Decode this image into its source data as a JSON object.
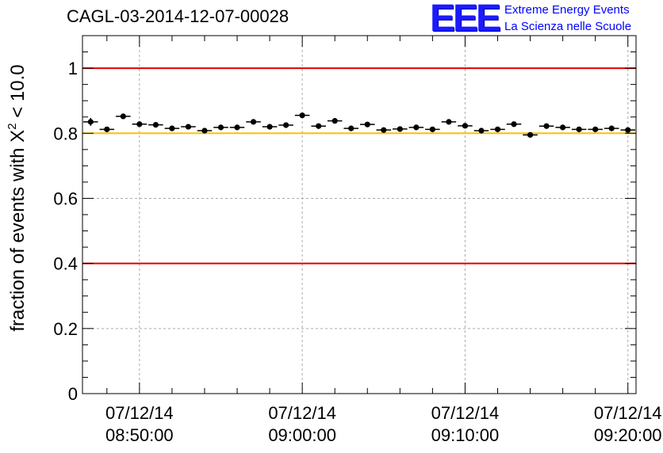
{
  "chart_data": {
    "type": "scatter",
    "title": "CAGL-03-2014-12-07-00028",
    "ylabel": "fraction of events with",
    "ylabel_symbol": "X",
    "ylabel_exponent": "2",
    "ylabel_cut": "< 10.0",
    "ylim": [
      0,
      1.1
    ],
    "yticks": [
      0,
      0.2,
      0.4,
      0.6,
      0.8,
      1
    ],
    "ytick_labels": [
      "0",
      "0.2",
      "0.4",
      "0.6",
      "0.8",
      "1"
    ],
    "xlim_minutes": [
      -3.5,
      30.5
    ],
    "xticks_minutes": [
      0,
      10,
      20,
      30
    ],
    "xtick_labels": [
      {
        "date": "07/12/14",
        "time": "08:50:00"
      },
      {
        "date": "07/12/14",
        "time": "09:00:00"
      },
      {
        "date": "07/12/14",
        "time": "09:10:00"
      },
      {
        "date": "07/12/14",
        "time": "09:20:00"
      }
    ],
    "x_unit": "time",
    "x_start": "07/12/14 08:46:30",
    "bin_width_minutes": 1,
    "grid": true,
    "reference_lines": [
      {
        "y": 1.0,
        "color": "#e00000"
      },
      {
        "y": 0.8,
        "color": "#ffc000"
      },
      {
        "y": 0.4,
        "color": "#e00000"
      }
    ],
    "series": [
      {
        "color": "#000000",
        "x_minutes": [
          -3,
          -2,
          -1,
          0,
          1,
          2,
          3,
          4,
          5,
          6,
          7,
          8,
          9,
          10,
          11,
          12,
          13,
          14,
          15,
          16,
          17,
          18,
          19,
          20,
          21,
          22,
          23,
          24,
          25,
          26,
          27,
          28,
          29,
          30
        ],
        "y": [
          0.835,
          0.812,
          0.852,
          0.828,
          0.826,
          0.815,
          0.82,
          0.808,
          0.818,
          0.818,
          0.835,
          0.82,
          0.825,
          0.855,
          0.822,
          0.838,
          0.815,
          0.827,
          0.81,
          0.813,
          0.818,
          0.812,
          0.835,
          0.823,
          0.808,
          0.812,
          0.828,
          0.795,
          0.822,
          0.818,
          0.812,
          0.812,
          0.815,
          0.81
        ],
        "yerr": [
          0.012,
          0.008,
          0.008,
          0.008,
          0.008,
          0.008,
          0.008,
          0.008,
          0.008,
          0.008,
          0.008,
          0.008,
          0.008,
          0.008,
          0.008,
          0.008,
          0.008,
          0.008,
          0.008,
          0.008,
          0.008,
          0.008,
          0.008,
          0.008,
          0.008,
          0.008,
          0.008,
          0.008,
          0.008,
          0.008,
          0.008,
          0.008,
          0.008,
          0.008
        ]
      }
    ]
  },
  "logo": {
    "mark": "EEE",
    "line1": "Extreme Energy Events",
    "line2": "La Scienza nelle Scuole"
  }
}
